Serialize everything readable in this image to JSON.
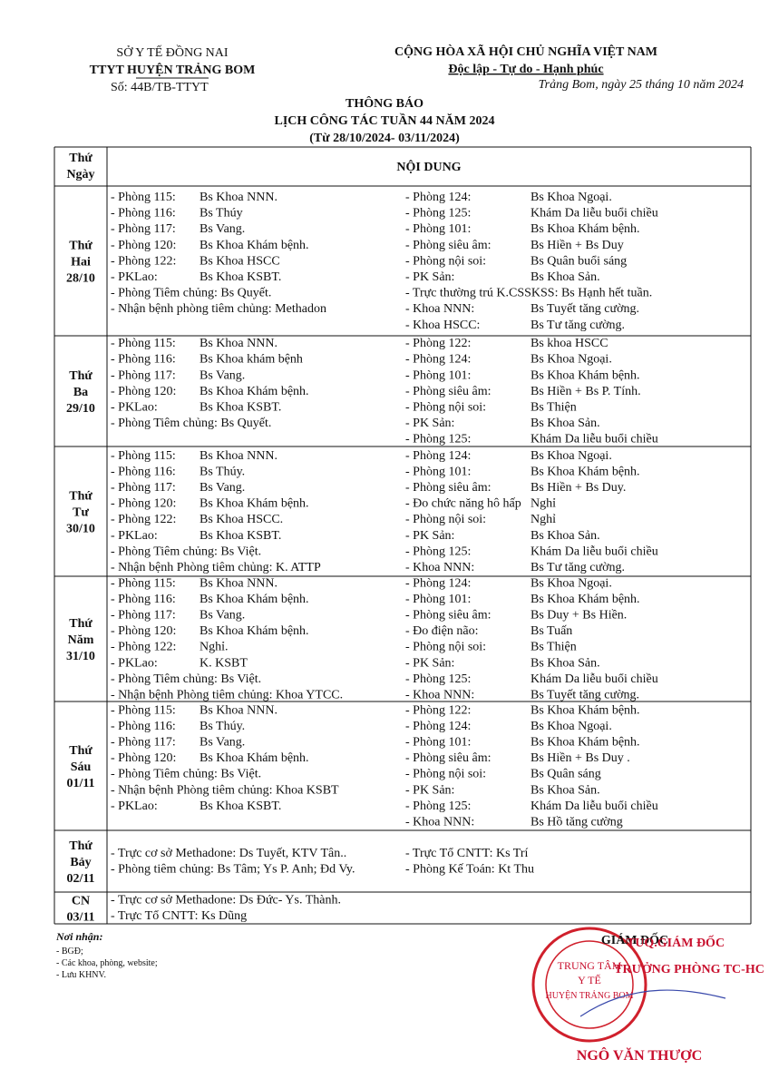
{
  "header": {
    "agency": "SỞ Y TẾ ĐỒNG NAI",
    "unit": "TTYT HUYỆN TRẢNG BOM",
    "number": "Số: 44B/TB-TTYT",
    "country": "CỘNG HÒA XÃ HỘI CHỦ NGHĨA VIỆT NAM",
    "motto": "Độc lập - Tự do - Hạnh phúc",
    "date": "Trảng Bom, ngày 25 tháng 10 năm 2024"
  },
  "title": {
    "kind": "THÔNG BÁO",
    "name": "LỊCH CÔNG TÁC TUẦN 44 NĂM 2024",
    "range": "(Từ 28/10/2024- 03/11/2024)"
  },
  "table": {
    "head": [
      [
        "Thứ",
        "Ngày"
      ],
      "NỘI DUNG"
    ],
    "days": [
      {
        "day": [
          "Thứ",
          "Hai",
          "28/10"
        ],
        "left": [
          [
            "- Phòng 115:",
            "Bs Khoa NNN."
          ],
          [
            "- Phòng 116:",
            "Bs Thúy"
          ],
          [
            "- Phòng 117:",
            "Bs Vang."
          ],
          [
            "- Phòng 120:",
            "Bs Khoa Khám bệnh."
          ],
          [
            "- Phòng 122:",
            "Bs Khoa HSCC"
          ],
          [
            "- PKLao:",
            "Bs Khoa KSBT."
          ],
          "- Phòng Tiêm chủng:  Bs Quyết.",
          "- Nhận bệnh phòng tiêm chủng: Methadon"
        ],
        "right": [
          [
            "- Phòng 124:",
            "Bs Khoa Ngoại."
          ],
          [
            "- Phòng 125:",
            "Khám Da liễu buổi chiều"
          ],
          [
            "- Phòng 101:",
            "Bs Khoa Khám bệnh."
          ],
          [
            "- Phòng siêu âm:",
            "Bs Hiền + Bs Duy"
          ],
          [
            "- Phòng nội soi:",
            "Bs Quân buổi sáng"
          ],
          [
            "- PK Sản:",
            "Bs Khoa Sản."
          ],
          "- Trực thường trú K.CSSKSS: Bs Hạnh hết tuần.",
          [
            "- Khoa NNN:",
            "Bs Tuyết tăng cường."
          ],
          [
            "- Khoa HSCC:",
            "Bs Tư tăng cường."
          ]
        ]
      },
      {
        "day": [
          "Thứ",
          "Ba",
          "29/10"
        ],
        "left": [
          [
            "- Phòng 115:",
            "Bs Khoa NNN."
          ],
          [
            "- Phòng 116:",
            "Bs Khoa khám bệnh"
          ],
          [
            "- Phòng 117:",
            "Bs Vang."
          ],
          [
            "- Phòng 120:",
            "Bs Khoa Khám bệnh."
          ],
          [
            "- PKLao:",
            "Bs Khoa KSBT."
          ],
          "- Phòng Tiêm chủng: Bs Quyết."
        ],
        "right": [
          [
            "- Phòng 122:",
            "Bs khoa HSCC"
          ],
          [
            "- Phòng 124:",
            "Bs Khoa Ngoại."
          ],
          [
            "- Phòng 101:",
            "Bs Khoa Khám bệnh."
          ],
          [
            "- Phòng siêu âm:",
            "Bs Hiền + Bs P. Tính."
          ],
          [
            "- Phòng nội soi:",
            "Bs Thiện"
          ],
          [
            "- PK Sản:",
            "Bs Khoa Sản."
          ],
          [
            "- Phòng 125:",
            "Khám Da liễu buổi chiều"
          ]
        ]
      },
      {
        "day": [
          "Thứ",
          "Tư",
          "30/10"
        ],
        "left": [
          [
            "- Phòng 115:",
            "Bs Khoa NNN."
          ],
          [
            "- Phòng 116:",
            "Bs Thúy."
          ],
          [
            "- Phòng 117:",
            "Bs Vang."
          ],
          [
            "- Phòng 120:",
            "Bs Khoa Khám bệnh."
          ],
          [
            "- Phòng 122:",
            "Bs Khoa HSCC."
          ],
          [
            "- PKLao:",
            "Bs Khoa KSBT."
          ],
          "- Phòng Tiêm chủng:  Bs Việt.",
          "- Nhận bệnh Phòng tiêm chủng: K. ATTP"
        ],
        "right": [
          [
            "- Phòng 124:",
            "Bs Khoa Ngoại."
          ],
          [
            "- Phòng 101:",
            "Bs Khoa Khám bệnh."
          ],
          [
            "- Phòng siêu âm:",
            "Bs Hiền + Bs Duy."
          ],
          [
            "- Đo chức năng hô hấp",
            "Nghỉ"
          ],
          [
            "- Phòng nội soi:",
            "Nghỉ"
          ],
          [
            "- PK Sản:",
            "Bs Khoa Sản."
          ],
          [
            "- Phòng 125:",
            "Khám Da liễu buổi chiều"
          ],
          [
            "- Khoa NNN:",
            "Bs Tư tăng cường."
          ]
        ]
      },
      {
        "day": [
          "Thứ",
          "Năm",
          "31/10"
        ],
        "left": [
          [
            "- Phòng 115:",
            "Bs Khoa NNN."
          ],
          [
            "- Phòng 116:",
            "Bs Khoa Khám bệnh."
          ],
          [
            "- Phòng 117:",
            "Bs Vang."
          ],
          [
            "- Phòng 120:",
            "Bs Khoa Khám bệnh."
          ],
          [
            "- Phòng 122:",
            "Nghỉ."
          ],
          [
            "- PKLao:",
            "K. KSBT"
          ],
          "- Phòng Tiêm chủng:  Bs Việt.",
          "- Nhận bệnh Phòng tiêm chủng: Khoa YTCC."
        ],
        "right": [
          [
            "- Phòng 124:",
            "Bs Khoa Ngoại."
          ],
          [
            "- Phòng 101:",
            "Bs Khoa Khám bệnh."
          ],
          [
            "- Phòng siêu âm:",
            "Bs Duy + Bs Hiền."
          ],
          [
            "- Đo điện não:",
            "Bs Tuấn"
          ],
          [
            "- Phòng nội soi:",
            "Bs Thiện"
          ],
          [
            "- PK Sản:",
            "Bs Khoa Sản."
          ],
          [
            "- Phòng 125:",
            "Khám Da liễu buổi chiều"
          ],
          [
            "- Khoa NNN:",
            "Bs Tuyết tăng cường."
          ]
        ]
      },
      {
        "day": [
          "Thứ",
          "Sáu",
          "01/11"
        ],
        "left": [
          [
            "- Phòng 115:",
            "Bs Khoa NNN."
          ],
          [
            "- Phòng 116:",
            "Bs Thúy."
          ],
          [
            "- Phòng 117:",
            "Bs Vang."
          ],
          [
            "- Phòng 120:",
            "Bs Khoa Khám bệnh."
          ],
          "- Phòng Tiêm chủng: Bs Việt.",
          "- Nhận bệnh Phòng tiêm chủng:  Khoa KSBT",
          [
            "- PKLao:",
            "Bs Khoa KSBT."
          ]
        ],
        "right": [
          [
            "- Phòng 122:",
            "Bs Khoa Khám bệnh."
          ],
          [
            "- Phòng 124:",
            "Bs Khoa Ngoại."
          ],
          [
            "- Phòng 101:",
            "Bs Khoa Khám bệnh."
          ],
          [
            "- Phòng siêu âm:",
            "Bs Hiền +  Bs Duy ."
          ],
          [
            "- Phòng nội soi:",
            "Bs Quân sáng"
          ],
          [
            "- PK Sản:",
            "Bs Khoa Sản."
          ],
          [
            "- Phòng 125:",
            "Khám Da liễu buổi chiều"
          ],
          [
            "- Khoa NNN:",
            "Bs Hồ tăng cường"
          ]
        ]
      },
      {
        "day": [
          "Thứ",
          "Bảy",
          "02/11"
        ],
        "left": [
          "- Trực cơ sở Methadone: Ds Tuyết, KTV Tân..",
          "- Phòng tiêm chủng: Bs Tâm; Ys P. Anh; Đd Vy."
        ],
        "right": [
          "- Trực Tổ CNTT: Ks Trí",
          "- Phòng Kế Toán: Kt Thu"
        ]
      },
      {
        "day": [
          "CN",
          "03/11"
        ],
        "left": [
          "- Trực cơ sở Methadone:  Ds Đức- Ys. Thành.",
          "- Trực Tổ CNTT: Ks Dũng"
        ],
        "right": []
      }
    ]
  },
  "footer": {
    "recipients_title": "Nơi nhận:",
    "recipients": [
      "- BGĐ;",
      "- Các khoa, phòng, website;",
      "- Lưu KHNV."
    ],
    "sign": [
      "GIÁM ĐỐC",
      "TUQ.GIÁM ĐỐC",
      "TRƯỞNG PHÒNG TC-HC"
    ],
    "stamp": [
      "TRUNG TÂM",
      "Y TẾ",
      "HUYỆN TRẢNG BOM"
    ],
    "signer": "NGÔ VĂN THƯỢC"
  }
}
